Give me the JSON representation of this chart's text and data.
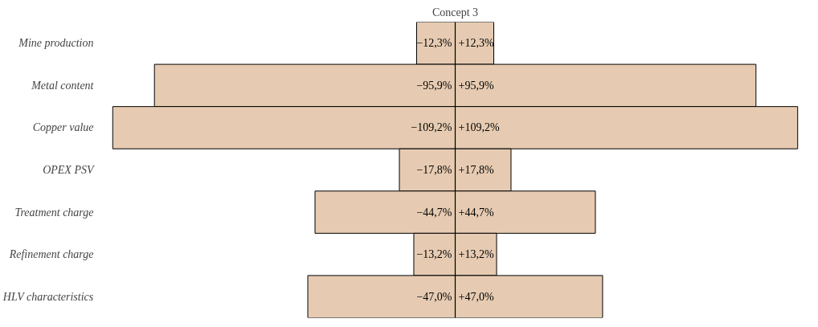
{
  "chart_data": {
    "type": "bar",
    "orientation": "horizontal",
    "stacked": true,
    "title": "Concept 3",
    "categories": [
      "Mine production",
      "Metal content",
      "Copper value",
      "OPEX PSV",
      "Treatment charge",
      "Refinement charge",
      "HLV characteristics"
    ],
    "series": [
      {
        "color": "#e6cbb2",
        "values": [
          -12.3,
          -95.9,
          -109.2,
          -17.8,
          -44.7,
          -13.2,
          -47.0
        ],
        "value_labels": [
          "−12,3%",
          "−95,9%",
          "−109,2%",
          "−17,8%",
          "−44,7%",
          "−13,2%",
          "−47,0%"
        ]
      },
      {
        "color": "#e6cbb2",
        "values": [
          12.3,
          95.9,
          109.2,
          17.8,
          44.7,
          13.2,
          47.0
        ],
        "value_labels": [
          "+12,3%",
          "+95,9%",
          "+109,2%",
          "+17,8%",
          "+44,7%",
          "+13,2%",
          "+47,0%"
        ]
      }
    ],
    "grid": false,
    "ref_lines": [
      {
        "axis": "x",
        "value": 0,
        "color": "#000000"
      }
    ]
  }
}
